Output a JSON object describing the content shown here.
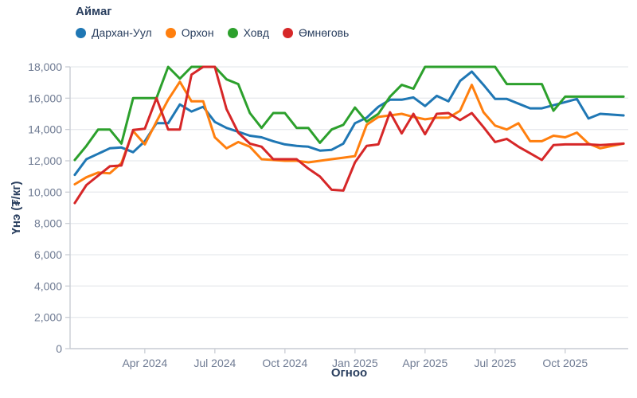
{
  "legend": {
    "title": "Аймаг"
  },
  "colors": {
    "title_text": "#2a3f5f",
    "tick_text": "#6f7b93",
    "grid": "#e8eaee",
    "axis_line": "#c9cdd4",
    "background": "#ffffff"
  },
  "chart_data": {
    "type": "line",
    "title": "",
    "xlabel": "Огноо",
    "ylabel": "Үнэ (₮/кг)",
    "x_unit_note": "x = months since Jan 2024, one point every half month (Jan 2024 – Dec 2025)",
    "x_start": 0,
    "x_step": 0.5,
    "xlim": [
      -0.2,
      23.7
    ],
    "ylim": [
      0,
      18000
    ],
    "grid": "horizontal-only",
    "legend_position": "top-left",
    "x_ticks": [
      {
        "m": 3,
        "label": "Apr 2024"
      },
      {
        "m": 6,
        "label": "Jul 2024"
      },
      {
        "m": 9,
        "label": "Oct 2024"
      },
      {
        "m": 12,
        "label": "Jan 2025"
      },
      {
        "m": 15,
        "label": "Apr 2025"
      },
      {
        "m": 18,
        "label": "Jul 2025"
      },
      {
        "m": 21,
        "label": "Oct 2025"
      }
    ],
    "y_ticks": [
      {
        "v": 0,
        "label": "0"
      },
      {
        "v": 2000,
        "label": "2,000"
      },
      {
        "v": 4000,
        "label": "4,000"
      },
      {
        "v": 6000,
        "label": "6,000"
      },
      {
        "v": 8000,
        "label": "8,000"
      },
      {
        "v": 10000,
        "label": "10,000"
      },
      {
        "v": 12000,
        "label": "12,000"
      },
      {
        "v": 14000,
        "label": "14,000"
      },
      {
        "v": 16000,
        "label": "16,000"
      },
      {
        "v": 18000,
        "label": "18,000"
      }
    ],
    "series": [
      {
        "name": "Дархан-Уул",
        "color": "#1f77b4",
        "values": [
          11100,
          12100,
          12450,
          12800,
          12850,
          12550,
          13250,
          14400,
          14400,
          15600,
          15150,
          15450,
          14480,
          14100,
          13850,
          13600,
          13500,
          13250,
          13050,
          12950,
          12900,
          12650,
          12700,
          13100,
          14400,
          14750,
          15450,
          15900,
          15900,
          16050,
          15500,
          16150,
          15800,
          17100,
          17700,
          16850,
          15950,
          15950,
          15650,
          15350,
          15350,
          15550,
          15750,
          15950,
          14700,
          15000,
          14950,
          14900
        ]
      },
      {
        "name": "Орхон",
        "color": "#ff7f0e",
        "values": [
          10500,
          10950,
          11250,
          11200,
          11850,
          13900,
          13050,
          14500,
          15900,
          17050,
          15800,
          15800,
          13500,
          12800,
          13200,
          12900,
          12100,
          12050,
          12000,
          12000,
          11900,
          12000,
          12100,
          12200,
          12300,
          14300,
          14800,
          14900,
          15000,
          14800,
          14650,
          14750,
          14750,
          15200,
          16850,
          15100,
          14250,
          14000,
          14400,
          13250,
          13250,
          13600,
          13500,
          13800,
          13100,
          12800,
          12950,
          13100
        ]
      },
      {
        "name": "Ховд",
        "color": "#2ca02c",
        "values": [
          12050,
          12950,
          14000,
          14000,
          13100,
          16000,
          16000,
          16000,
          18000,
          17250,
          18000,
          18000,
          18000,
          17200,
          16900,
          15050,
          14100,
          15050,
          15050,
          14100,
          14100,
          13150,
          14000,
          14300,
          15400,
          14500,
          15000,
          16100,
          16850,
          16600,
          18000,
          18000,
          18000,
          18000,
          18000,
          18000,
          18000,
          16900,
          16900,
          16900,
          16900,
          15200,
          16100,
          16100,
          16100,
          16100,
          16100,
          16100
        ]
      },
      {
        "name": "Өмнөговь",
        "color": "#d62728",
        "values": [
          9300,
          10450,
          11050,
          11650,
          11700,
          13970,
          14050,
          16000,
          14000,
          14000,
          17500,
          18000,
          18000,
          15300,
          13800,
          13100,
          12900,
          12100,
          12100,
          12100,
          11500,
          11000,
          10150,
          10100,
          11900,
          12950,
          13050,
          15100,
          13750,
          15000,
          13700,
          15000,
          15050,
          14600,
          15050,
          14150,
          13200,
          13400,
          12900,
          12480,
          12050,
          13000,
          13050,
          13050,
          13050,
          13000,
          13050,
          13100
        ]
      }
    ]
  }
}
